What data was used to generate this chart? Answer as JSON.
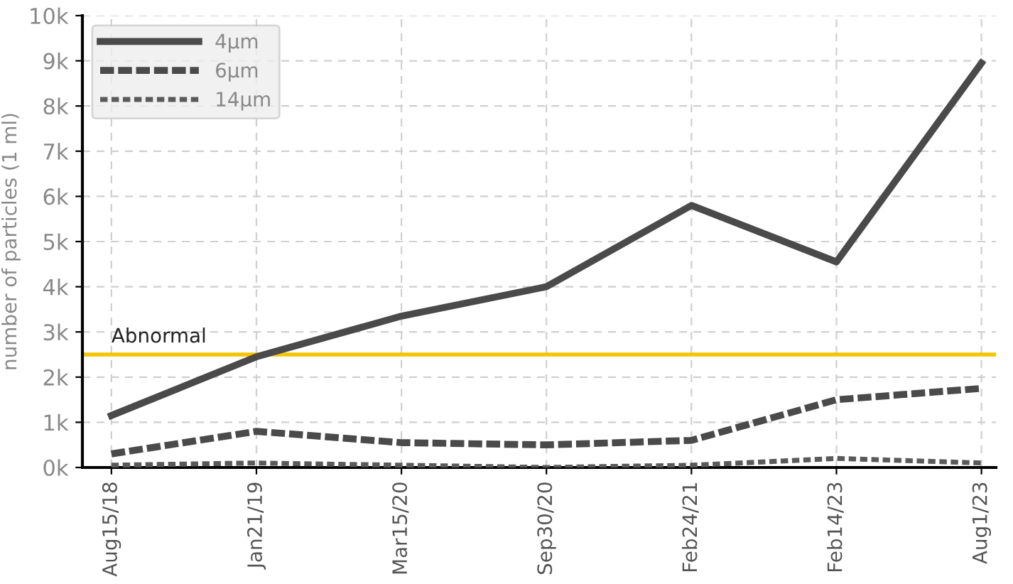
{
  "chart_data": {
    "type": "line",
    "ylabel": "number of particles (1 ml)",
    "categories": [
      "Aug15/18",
      "Jan21/19",
      "Mar15/20",
      "Sep30/20",
      "Feb24/21",
      "Feb14/23",
      "Aug1/23"
    ],
    "series": [
      {
        "name": "4μm",
        "color": "#4a4a4a",
        "line_style": "solid",
        "values": [
          1150,
          2450,
          3350,
          4000,
          5800,
          4550,
          8950
        ]
      },
      {
        "name": "6μm",
        "color": "#4a4a4a",
        "line_style": "dashed",
        "values": [
          300,
          800,
          550,
          500,
          600,
          1500,
          1750
        ]
      },
      {
        "name": "14μm",
        "color": "#5a5a5a",
        "line_style": "dotted",
        "values": [
          50,
          100,
          50,
          0,
          50,
          200,
          100
        ]
      }
    ],
    "ylim": [
      0,
      10000
    ],
    "yticks": [
      {
        "value": 0,
        "label": "0k"
      },
      {
        "value": 1000,
        "label": "1k"
      },
      {
        "value": 2000,
        "label": "2k"
      },
      {
        "value": 3000,
        "label": "3k"
      },
      {
        "value": 4000,
        "label": "4k"
      },
      {
        "value": 5000,
        "label": "5k"
      },
      {
        "value": 6000,
        "label": "6k"
      },
      {
        "value": 7000,
        "label": "7k"
      },
      {
        "value": 8000,
        "label": "8k"
      },
      {
        "value": 9000,
        "label": "9k"
      },
      {
        "value": 10000,
        "label": "10k"
      }
    ],
    "ref_lines": [
      {
        "axis": "y",
        "value": 2500,
        "label": "Abnormal",
        "color": "#f5c400",
        "line_style": "solid"
      }
    ],
    "grid": true,
    "legend": "top left",
    "marker": "none"
  }
}
